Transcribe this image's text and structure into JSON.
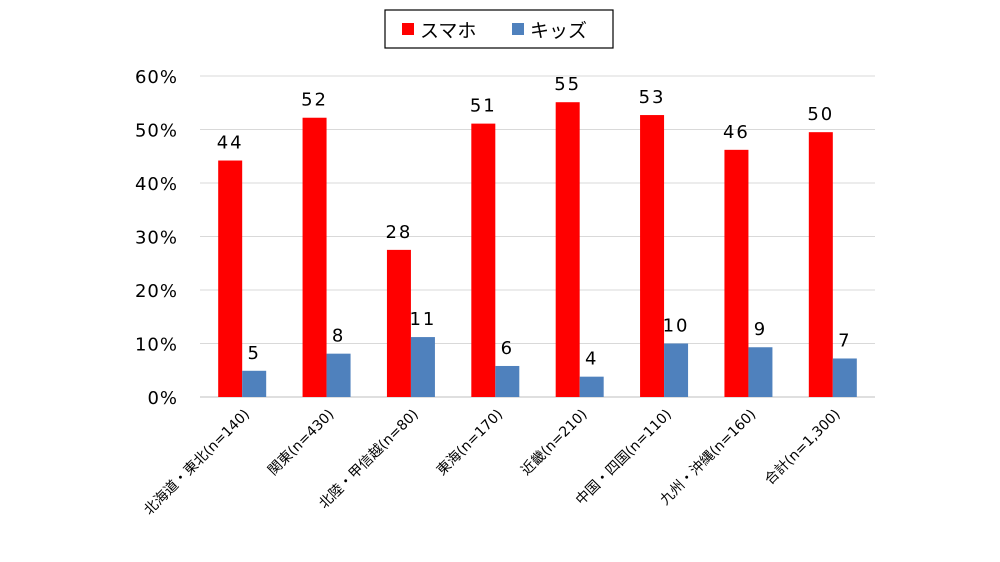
{
  "chart_data": {
    "type": "bar",
    "categories": [
      "北海道・東北(n=140)",
      "関東(n=430)",
      "北陸・甲信越(n=80)",
      "東海(n=170)",
      "近畿(n=210)",
      "中国・四国(n=110)",
      "九州・沖縄(n=160)",
      "合計(n=1,300)"
    ],
    "series": [
      {
        "name": "スマホ",
        "color": "#ff0000",
        "values": [
          44.2,
          52.2,
          27.5,
          51.1,
          55.1,
          52.7,
          46.2,
          49.5
        ],
        "labels": [
          "44",
          "52",
          "28",
          "51",
          "55",
          "53",
          "46",
          "50"
        ]
      },
      {
        "name": "キッズ",
        "color": "#4f81bd",
        "values": [
          4.9,
          8.1,
          11.2,
          5.8,
          3.8,
          10.0,
          9.3,
          7.2
        ],
        "labels": [
          "5",
          "8",
          "11",
          "6",
          "4",
          "10",
          "9",
          "7"
        ]
      }
    ],
    "yticks": [
      "0%",
      "10%",
      "20%",
      "30%",
      "40%",
      "50%",
      "60%"
    ],
    "ylim": [
      0,
      60
    ],
    "grid": true,
    "legend": "top-center",
    "xlabel": "",
    "ylabel": "",
    "title": ""
  }
}
